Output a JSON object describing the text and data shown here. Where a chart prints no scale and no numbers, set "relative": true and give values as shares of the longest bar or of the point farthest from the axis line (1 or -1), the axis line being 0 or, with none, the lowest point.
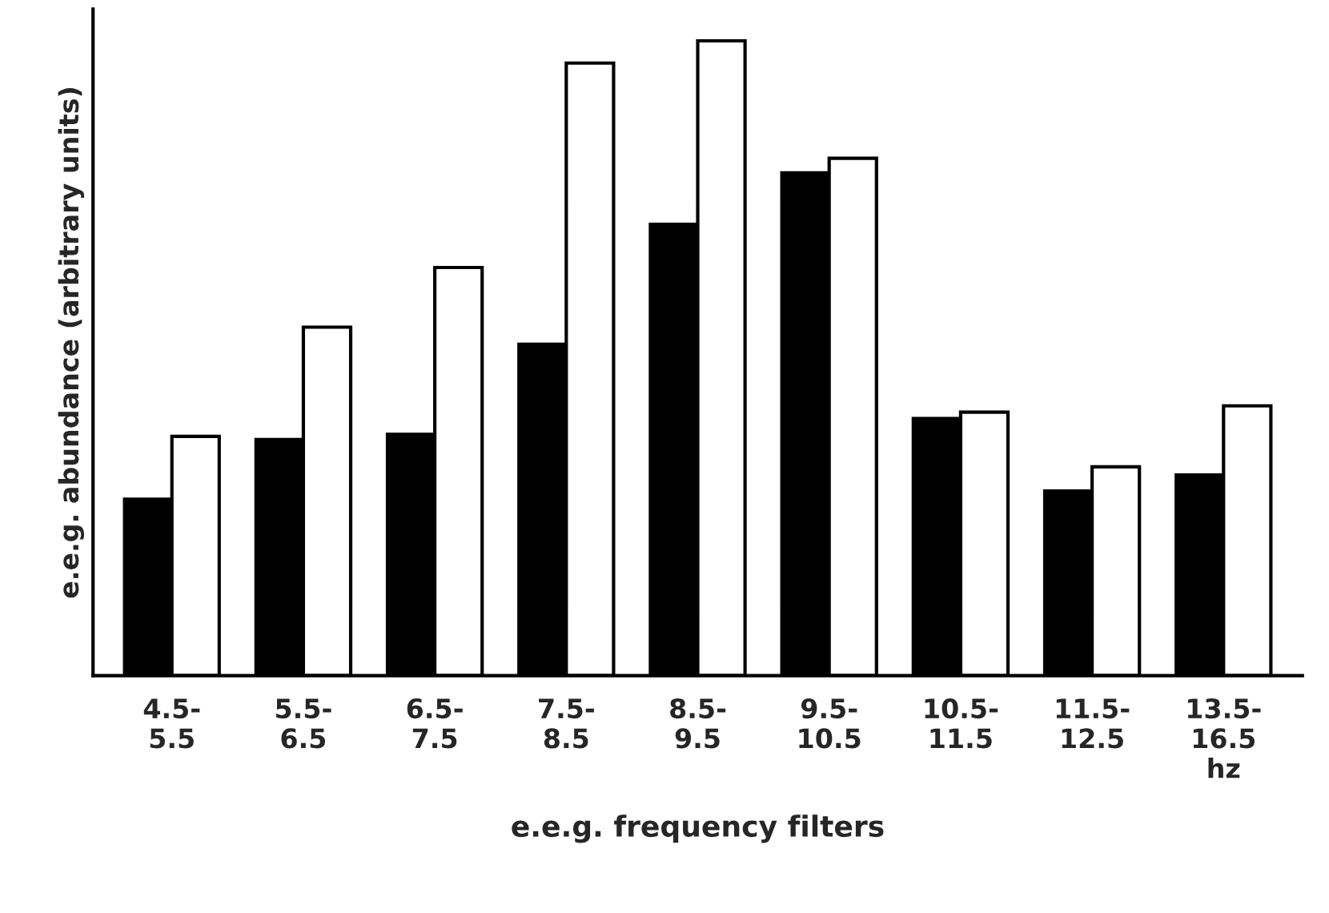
{
  "chart_data": {
    "type": "bar",
    "relative": true,
    "xlabel": "e.e.g. frequency filters",
    "ylabel": "e.e.g. abundance (arbitrary units)",
    "categories": [
      "4.5-\n5.5",
      "5.5-\n6.5",
      "6.5-\n7.5",
      "7.5-\n8.5",
      "8.5-\n9.5",
      "9.5-\n10.5",
      "10.5-\n11.5",
      "11.5-\n12.5",
      "13.5-\n16.5\nhz"
    ],
    "series": [
      {
        "color": "#000000",
        "values": [
          0.278,
          0.372,
          0.38,
          0.522,
          0.711,
          0.792,
          0.405,
          0.291,
          0.316
        ]
      },
      {
        "color": "#ffffff",
        "values": [
          0.377,
          0.549,
          0.643,
          0.965,
          1,
          0.815,
          0.415,
          0.329,
          0.425
        ]
      }
    ],
    "grid": false
  }
}
